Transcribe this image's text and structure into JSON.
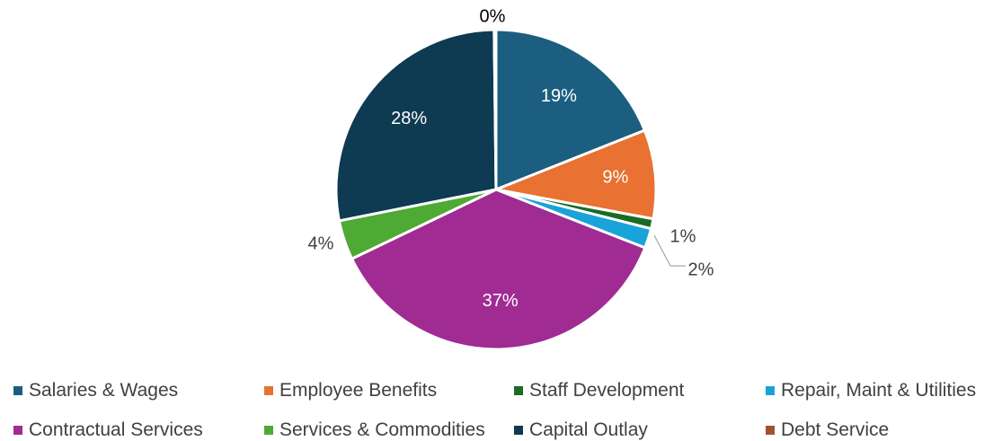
{
  "chart_data": {
    "type": "pie",
    "categories": [
      "Salaries & Wages",
      "Employee Benefits",
      "Staff Development",
      "Repair, Maint & Utilities",
      "Contractual Services",
      "Services & Commodities",
      "Capital Outlay",
      "Debt Service"
    ],
    "values": [
      19,
      9,
      1,
      2,
      37,
      4,
      28,
      0
    ],
    "data_labels": [
      "19%",
      "9%",
      "1%",
      "2%",
      "37%",
      "4%",
      "28%",
      "0%"
    ],
    "colors": [
      "#1b5e80",
      "#e97132",
      "#196b24",
      "#1aa3d9",
      "#a02b93",
      "#4eaa34",
      "#0e3a52",
      "#a0522d"
    ],
    "legend_position": "bottom"
  }
}
